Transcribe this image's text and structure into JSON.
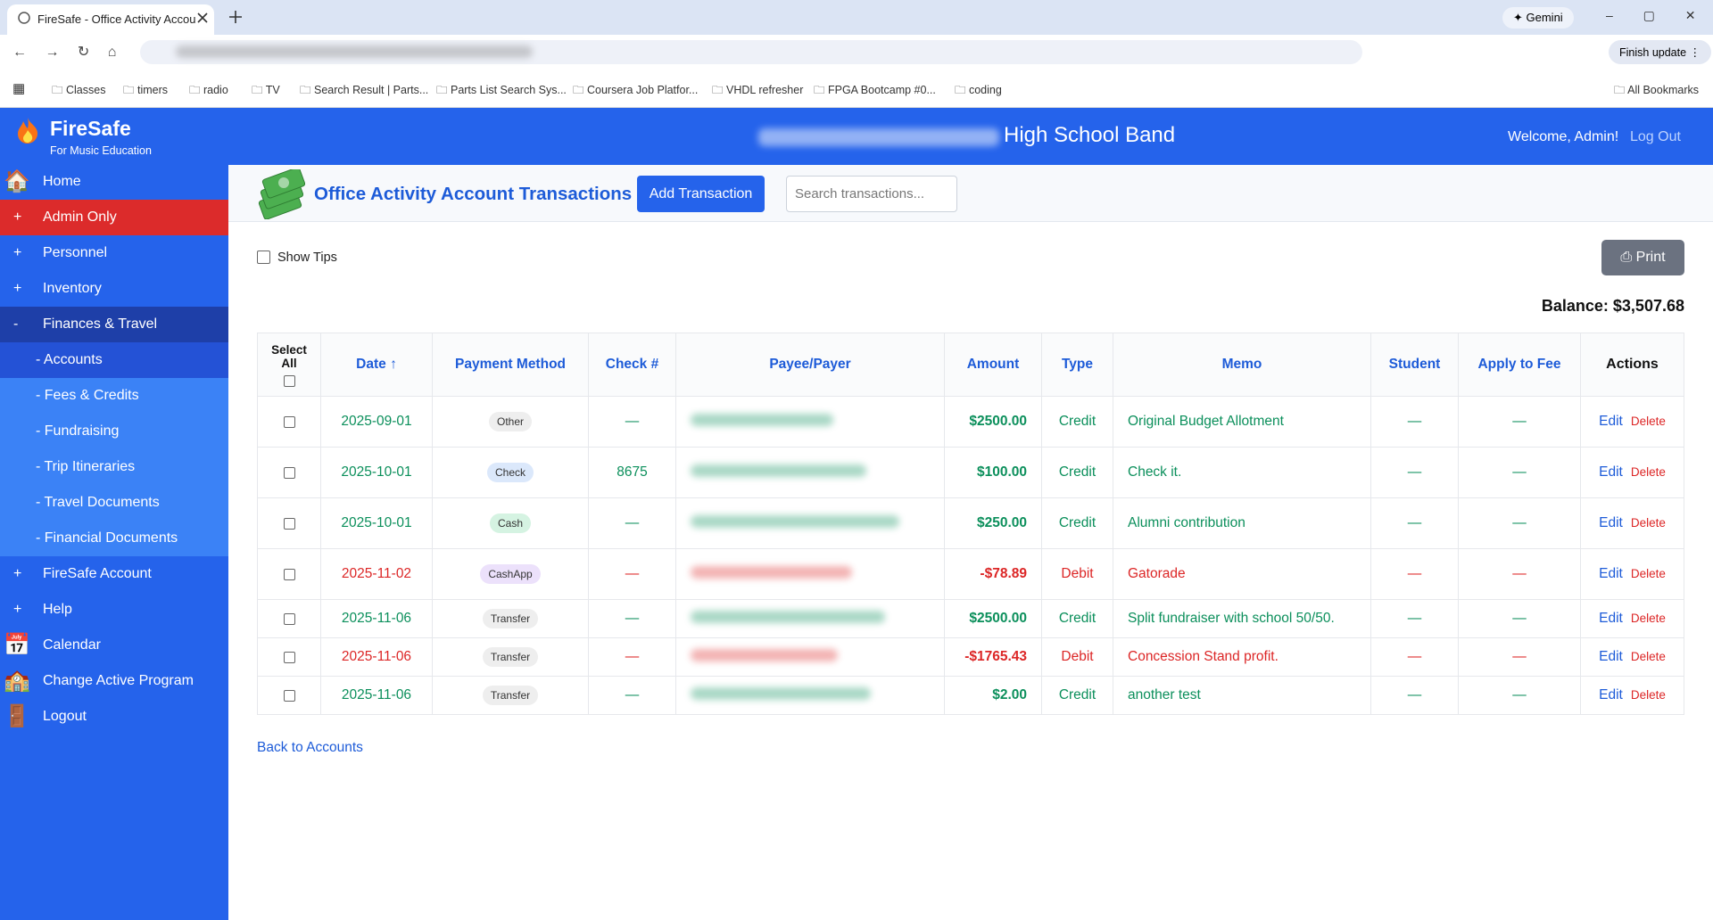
{
  "browser": {
    "tab_title": "FireSafe - Office Activity Accou",
    "gemini": "Gemini",
    "finish_update": "Finish update",
    "all_bookmarks": "All Bookmarks",
    "bookmarks": [
      "Classes",
      "timers",
      "radio",
      "TV",
      "Search Result | Parts...",
      "Parts List Search Sys...",
      "Coursera Job Platfor...",
      "VHDL refresher",
      "FPGA Bootcamp #0...",
      "coding"
    ]
  },
  "app": {
    "brand": "FireSafe",
    "tagline": "For Music Education",
    "header_title": "High School Band",
    "welcome": "Welcome, Admin!",
    "logout": "Log Out"
  },
  "sidebar": [
    {
      "prefix": "",
      "label": "Home"
    },
    {
      "prefix": "+",
      "label": "Admin Only"
    },
    {
      "prefix": "+",
      "label": "Personnel"
    },
    {
      "prefix": "+",
      "label": "Inventory"
    },
    {
      "prefix": "-",
      "label": "Finances & Travel"
    },
    {
      "prefix": "",
      "label": "- Accounts"
    },
    {
      "prefix": "",
      "label": "- Fees & Credits"
    },
    {
      "prefix": "",
      "label": "- Fundraising"
    },
    {
      "prefix": "",
      "label": "- Trip Itineraries"
    },
    {
      "prefix": "",
      "label": "- Travel Documents"
    },
    {
      "prefix": "",
      "label": "- Financial Documents"
    },
    {
      "prefix": "+",
      "label": "FireSafe Account"
    },
    {
      "prefix": "+",
      "label": "Help"
    },
    {
      "prefix": "",
      "label": "Calendar"
    },
    {
      "prefix": "",
      "label": "Change Active Program"
    },
    {
      "prefix": "",
      "label": "Logout"
    }
  ],
  "page": {
    "title": "Office Activity Account Transactions",
    "add_button": "Add Transaction",
    "search_placeholder": "Search transactions...",
    "show_tips": "Show Tips",
    "print": "Print",
    "balance": "Balance: $3,507.68",
    "back": "Back to Accounts"
  },
  "table": {
    "headers": [
      "Select All",
      "Date ↑",
      "Payment Method",
      "Check #",
      "Payee/Payer",
      "Amount",
      "Type",
      "Memo",
      "Student",
      "Apply to Fee",
      "Actions"
    ],
    "rows": [
      {
        "date": "2025-09-01",
        "method": "Other",
        "badge_color": "#eeeeee",
        "check": "—",
        "amount": "$2500.00",
        "type": "Credit",
        "memo": "Original Budget Allotment",
        "student": "—",
        "fee": "—",
        "color": "#0b8f5b",
        "edit": "Edit",
        "delete": "Delete"
      },
      {
        "date": "2025-10-01",
        "method": "Check",
        "badge_color": "#dbe8fb",
        "check": "8675",
        "amount": "$100.00",
        "type": "Credit",
        "memo": "Check it.",
        "student": "—",
        "fee": "—",
        "color": "#0b8f5b",
        "edit": "Edit",
        "delete": "Delete"
      },
      {
        "date": "2025-10-01",
        "method": "Cash",
        "badge_color": "#d5f3e2",
        "check": "—",
        "amount": "$250.00",
        "type": "Credit",
        "memo": "Alumni contribution",
        "student": "—",
        "fee": "—",
        "color": "#0b8f5b",
        "edit": "Edit",
        "delete": "Delete"
      },
      {
        "date": "2025-11-02",
        "method": "CashApp",
        "badge_color": "#ece1fb",
        "check": "—",
        "amount": "-$78.89",
        "type": "Debit",
        "memo": "Gatorade",
        "student": "—",
        "fee": "—",
        "color": "#dc2626",
        "edit": "Edit",
        "delete": "Delete"
      },
      {
        "date": "2025-11-06",
        "method": "Transfer",
        "badge_color": "#eeeeee",
        "check": "—",
        "amount": "$2500.00",
        "type": "Credit",
        "memo": "Split fundraiser with school 50/50.",
        "student": "—",
        "fee": "—",
        "color": "#0b8f5b",
        "edit": "Edit",
        "delete": "Delete"
      },
      {
        "date": "2025-11-06",
        "method": "Transfer",
        "badge_color": "#eeeeee",
        "check": "—",
        "amount": "-$1765.43",
        "type": "Debit",
        "memo": "Concession Stand profit.",
        "student": "—",
        "fee": "—",
        "color": "#dc2626",
        "edit": "Edit",
        "delete": "Delete"
      },
      {
        "date": "2025-11-06",
        "method": "Transfer",
        "badge_color": "#eeeeee",
        "check": "—",
        "amount": "$2.00",
        "type": "Credit",
        "memo": "another test",
        "student": "—",
        "fee": "—",
        "color": "#0b8f5b",
        "edit": "Edit",
        "delete": "Delete"
      }
    ]
  }
}
